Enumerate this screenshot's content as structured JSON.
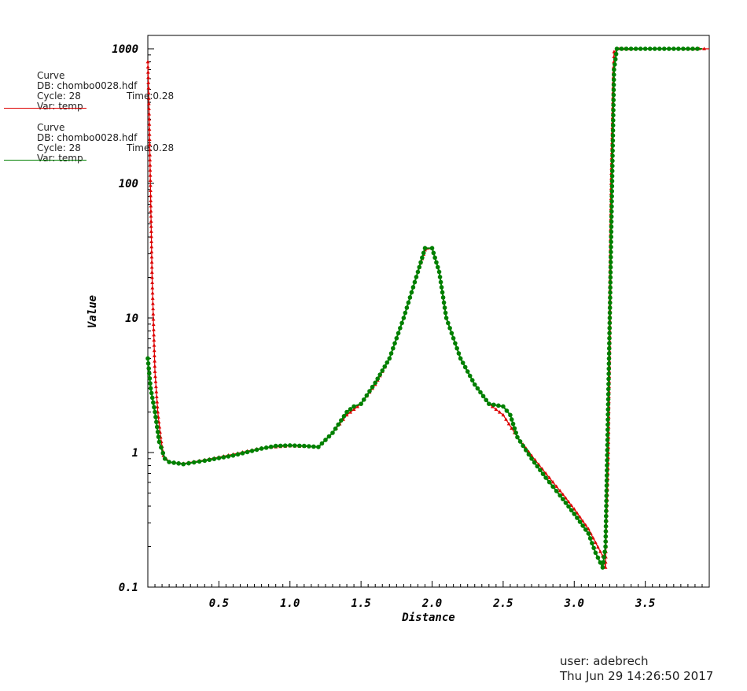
{
  "legend": [
    {
      "title": "Curve",
      "db": "DB: chombo0028.hdf",
      "cycle": "Cycle: 28",
      "time": "Time:0.28",
      "var": "Var: temp",
      "color": "#dd0000"
    },
    {
      "title": "Curve",
      "db": "DB: chombo0028.hdf",
      "cycle": "Cycle: 28",
      "time": "Time:0.28",
      "var": "Var: temp",
      "color": "#008000"
    }
  ],
  "footer": {
    "user": "user: adebrech",
    "date": "Thu Jun 29 14:26:50 2017"
  },
  "chart_data": {
    "type": "line",
    "xlabel": "Distance",
    "ylabel": "Value",
    "yscale": "log",
    "xlim": [
      0.0,
      3.95
    ],
    "ylim": [
      0.1,
      1000
    ],
    "xticks": [
      "0.5",
      "1.0",
      "1.5",
      "2.0",
      "2.5",
      "3.0",
      "3.5"
    ],
    "yticks": [
      "0.1",
      "1",
      "10",
      "100",
      "1000"
    ],
    "grid": false,
    "series": [
      {
        "color": "#dd0000",
        "marker": "triangle",
        "x": [
          0.0,
          0.01,
          0.03,
          0.05,
          0.07,
          0.09,
          0.11,
          0.15,
          0.25,
          0.4,
          0.6,
          0.8,
          1.0,
          1.2,
          1.3,
          1.4,
          1.5,
          1.6,
          1.7,
          1.8,
          1.9,
          1.95,
          2.0,
          2.05,
          2.1,
          2.2,
          2.3,
          2.4,
          2.5,
          2.6,
          2.7,
          2.8,
          2.9,
          3.0,
          3.1,
          3.2,
          3.22,
          3.24,
          3.26,
          3.28,
          3.32,
          3.5,
          3.7,
          3.95
        ],
        "y": [
          800,
          300,
          20,
          4,
          2,
          1.3,
          0.95,
          0.85,
          0.83,
          0.88,
          0.97,
          1.08,
          1.12,
          1.1,
          1.4,
          1.9,
          2.3,
          3.2,
          5,
          10,
          22,
          32,
          33,
          22,
          10,
          5,
          3.2,
          2.3,
          1.9,
          1.3,
          0.95,
          0.7,
          0.52,
          0.38,
          0.27,
          0.17,
          0.14,
          1.0,
          100,
          950,
          1000,
          1000,
          1000,
          1000
        ]
      },
      {
        "color": "#008000",
        "marker": "circle",
        "x": [
          0.0,
          0.02,
          0.05,
          0.08,
          0.12,
          0.15,
          0.25,
          0.4,
          0.6,
          0.8,
          0.9,
          1.0,
          1.1,
          1.2,
          1.3,
          1.4,
          1.45,
          1.5,
          1.6,
          1.7,
          1.8,
          1.9,
          1.95,
          2.0,
          2.05,
          2.1,
          2.2,
          2.3,
          2.4,
          2.5,
          2.55,
          2.6,
          2.7,
          2.8,
          2.9,
          3.0,
          3.1,
          3.15,
          3.2,
          3.22,
          3.25,
          3.28,
          3.3,
          3.5,
          3.7,
          3.9
        ],
        "y": [
          5,
          3,
          2,
          1.2,
          0.9,
          0.85,
          0.82,
          0.87,
          0.95,
          1.07,
          1.12,
          1.13,
          1.12,
          1.1,
          1.4,
          2.0,
          2.2,
          2.3,
          3.3,
          5,
          10,
          22,
          33,
          33,
          22,
          10,
          5,
          3.2,
          2.3,
          2.2,
          1.9,
          1.3,
          0.9,
          0.65,
          0.48,
          0.35,
          0.25,
          0.18,
          0.14,
          0.2,
          10,
          700,
          1000,
          1000,
          1000,
          1000
        ]
      }
    ]
  }
}
